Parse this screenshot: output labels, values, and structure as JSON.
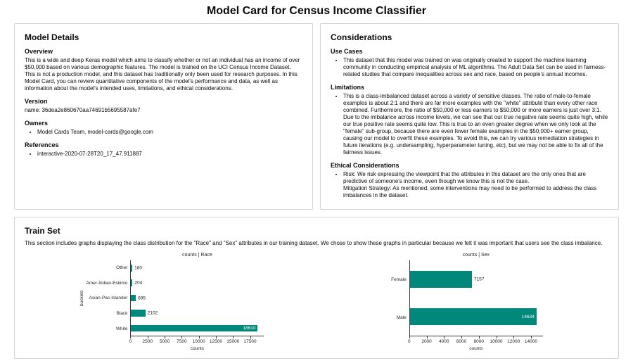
{
  "page": {
    "title": "Model Card for Census Income Classifier"
  },
  "model_details": {
    "title": "Model Details",
    "overview_heading": "Overview",
    "overview_text": "This is a wide and deep Keras model which aims to classify whether or not an individual has an income of over $50,000 based on various demographic features. The model is trained on the UCI Census Income Dataset. This is not a production model, and this dataset has traditionally only been used for research purposes. In this Model Card, you can review quantitative components of the model's performance and data, as well as information about the model's intended uses, limitations, and ethical considerations.",
    "version_heading": "Version",
    "version_value": "name: 36dea2e860670aa74691b5695587afe7",
    "owners_heading": "Owners",
    "owners": [
      "Model Cards Team, model-cards@google.com"
    ],
    "references_heading": "References",
    "references": [
      "interactive-2020-07-28T20_17_47.911887"
    ]
  },
  "considerations": {
    "title": "Considerations",
    "use_cases_heading": "Use Cases",
    "use_cases": [
      "This dataset that this model was trained on was originally created to support the machine learning community in conducting empirical analysis of ML algorithms. The Adult Data Set can be used in fairness-related studies that compare inequalities across sex and race, based on people's annual incomes."
    ],
    "limitations_heading": "Limitations",
    "limitations": [
      "This is a class-imbalanced dataset across a variety of sensitive classes. The ratio of male-to-female examples is about 2:1 and there are far more examples with the \"white\" attribute than every other race combined. Furthermore, the ratio of $50,000 or less earners to $50,000 or more earners is just over 3:1. Due to the imbalance across income levels, we can see that our true negative rate seems quite high, while our true positive rate seems quite low. This is true to an even greater degree when we only look at the \"female\" sub-group, because there are even fewer female examples in the $50,000+ earner group, causing our model to overfit these examples. To avoid this, we can try various remediation strategies in future iterations (e.g. undersampling, hyperparameter tuning, etc), but we may not be able to fix all of the fairness issues."
    ],
    "ethical_heading": "Ethical Considerations",
    "ethical": {
      "risk": "Risk: We risk expressing the viewpoint that the attributes in this dataset are the only ones that are predictive of someone's income, even though we know this is not the case.",
      "mitigation": "Mitigation Strategy: As mentioned, some interventions may need to be performed to address the class imbalances in the dataset."
    }
  },
  "train_set": {
    "title": "Train Set",
    "description": "This section includes graphs displaying the class distribution for the \"Race\" and \"Sex\" attributes in our training dataset. We chose to show these graphs in particular because we felt it was important that users see the class imbalance."
  },
  "chart_data": [
    {
      "type": "bar",
      "orientation": "horizontal",
      "title": "counts | Race",
      "xlabel": "counts",
      "ylabel": "buckets",
      "categories": [
        "Other",
        "Amer-Indian-Eskimo",
        "Asian-Pac-Islander",
        "Black",
        "White"
      ],
      "values": [
        180,
        204,
        695,
        2102,
        18610
      ],
      "xticks": [
        0,
        2500,
        5000,
        7500,
        10000,
        12500,
        15000,
        17500
      ],
      "xlim": [
        0,
        19540
      ],
      "bar_color": "#00897b",
      "grid": false,
      "legend": false
    },
    {
      "type": "bar",
      "orientation": "horizontal",
      "title": "counts | Sex",
      "xlabel": "counts",
      "ylabel": "",
      "categories": [
        "Female",
        "Male"
      ],
      "values": [
        7157,
        14634
      ],
      "xticks": [
        0,
        2000,
        4000,
        6000,
        8000,
        10000,
        12000,
        14000
      ],
      "xlim": [
        0,
        15365
      ],
      "bar_color": "#00897b",
      "grid": false,
      "legend": false
    }
  ]
}
